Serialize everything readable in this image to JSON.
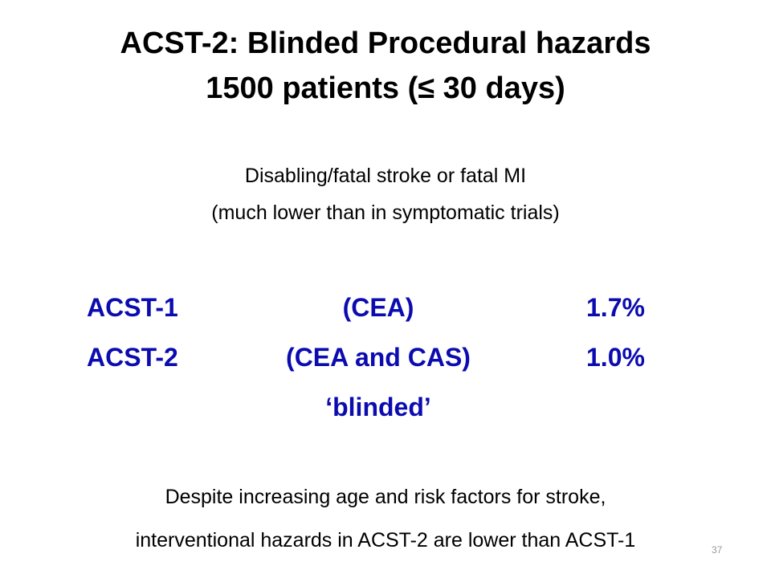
{
  "slide": {
    "title_line1": "ACST-2: Blinded Procedural hazards",
    "title_line2": "1500 patients (≤ 30 days)",
    "subtitle_line1": "Disabling/fatal  stroke or fatal MI",
    "subtitle_line2": "(much lower than in symptomatic trials)",
    "rows": [
      {
        "name": "ACST-1",
        "procedure": "(CEA)",
        "value": "1.7%"
      },
      {
        "name": "ACST-2",
        "procedure": "(CEA and CAS)",
        "value": "1.0%"
      }
    ],
    "blinded_label": "‘blinded’",
    "footer_line1": "Despite increasing age and risk factors for stroke,",
    "footer_line2": "interventional hazards in ACST-2 are lower than ACST-1",
    "page_number": "37"
  },
  "colors": {
    "accent_text": "#0b0bb0",
    "body_text": "#000000",
    "page_number": "#9a9a9a",
    "background": "#ffffff"
  }
}
